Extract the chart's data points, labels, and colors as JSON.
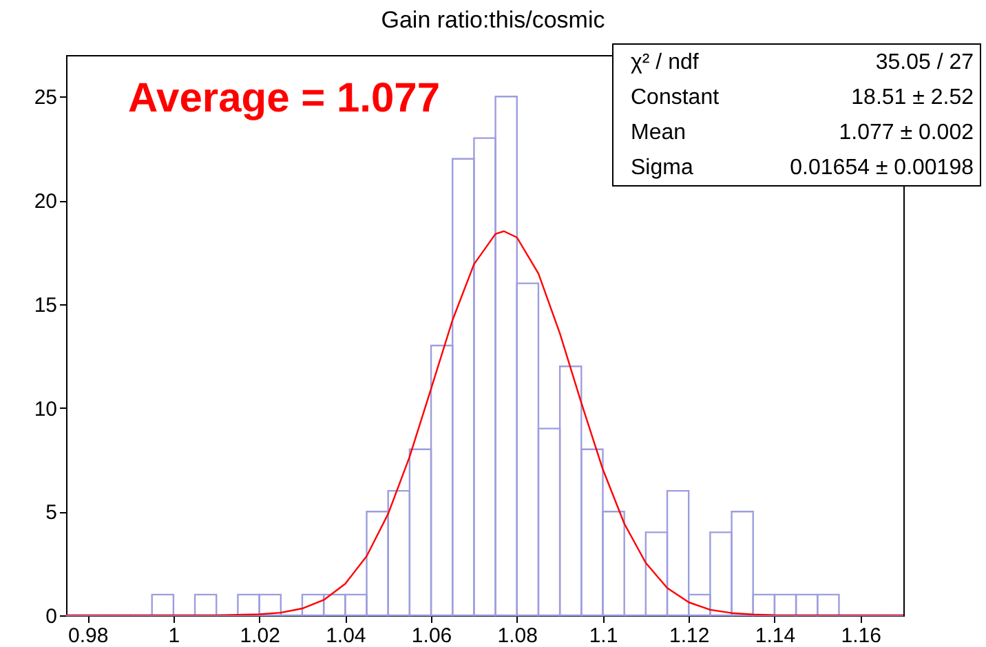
{
  "chart_data": {
    "type": "histogram",
    "title": "Gain ratio:this/cosmic",
    "bins": [
      0.975,
      0.98,
      0.985,
      0.99,
      0.995,
      1.0,
      1.005,
      1.01,
      1.015,
      1.02,
      1.025,
      1.03,
      1.035,
      1.04,
      1.045,
      1.05,
      1.055,
      1.06,
      1.065,
      1.07,
      1.075,
      1.08,
      1.085,
      1.09,
      1.095,
      1.1,
      1.105,
      1.11,
      1.115,
      1.12,
      1.125,
      1.13,
      1.135,
      1.14,
      1.145,
      1.15,
      1.155,
      1.16,
      1.165,
      1.17
    ],
    "series": [
      {
        "color": "#9d9ddf",
        "values": [
          0,
          0,
          0,
          0,
          1,
          0,
          1,
          0,
          1,
          1,
          0,
          1,
          1,
          1,
          5,
          6,
          8,
          13,
          22,
          23,
          25,
          16,
          9,
          12,
          8,
          5,
          0,
          4,
          6,
          1,
          4,
          5,
          1,
          1,
          1,
          1,
          0,
          0,
          0
        ]
      },
      {
        "type": "line",
        "color": "#ff0000",
        "x": [
          0.975,
          1.01,
          1.02,
          1.025,
          1.03,
          1.035,
          1.04,
          1.045,
          1.05,
          1.055,
          1.06,
          1.065,
          1.07,
          1.075,
          1.077,
          1.08,
          1.085,
          1.09,
          1.095,
          1.1,
          1.105,
          1.11,
          1.115,
          1.12,
          1.125,
          1.13,
          1.135,
          1.14,
          1.15,
          1.17
        ],
        "values": [
          0,
          0,
          0.05,
          0.13,
          0.33,
          0.74,
          1.52,
          2.85,
          4.89,
          7.64,
          10.92,
          14.23,
          16.92,
          18.38,
          18.51,
          18.21,
          16.47,
          13.59,
          10.24,
          7.04,
          4.42,
          2.53,
          1.32,
          0.63,
          0.27,
          0.11,
          0.04,
          0.01,
          0,
          0
        ]
      }
    ],
    "xlim": [
      0.975,
      1.17
    ],
    "xticks": [
      0.98,
      1,
      1.02,
      1.04,
      1.06,
      1.08,
      1.1,
      1.12,
      1.14,
      1.16
    ],
    "ylim": [
      0,
      27
    ],
    "yticks": [
      0,
      5,
      10,
      15,
      20,
      25
    ],
    "grid": false,
    "line_style": "solid",
    "marker": "none",
    "annotations": [
      "Average = 1.077",
      "χ² / ndf",
      "35.05 / 27",
      "Constant",
      "18.51 ± 2.52",
      "Mean",
      "1.077 ± 0.002",
      "Sigma",
      "0.01654 ± 0.00198"
    ]
  }
}
